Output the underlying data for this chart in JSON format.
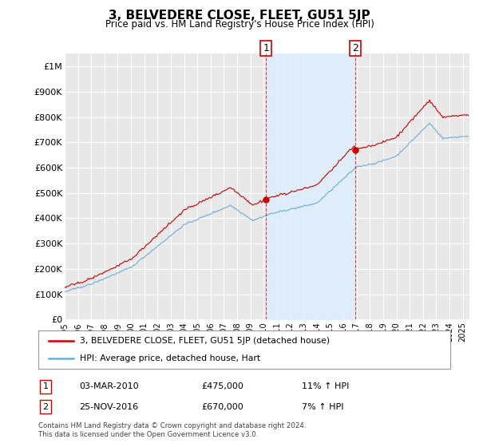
{
  "title": "3, BELVEDERE CLOSE, FLEET, GU51 5JP",
  "subtitle": "Price paid vs. HM Land Registry's House Price Index (HPI)",
  "hpi_color": "#6baed6",
  "price_color": "#cc0000",
  "shade_color": "#ddeeff",
  "background_color": "#ffffff",
  "plot_bg_color": "#e8e8e8",
  "grid_color": "#ffffff",
  "ylim": [
    0,
    1050000
  ],
  "yticks": [
    0,
    100000,
    200000,
    300000,
    400000,
    500000,
    600000,
    700000,
    800000,
    900000,
    1000000
  ],
  "ytick_labels": [
    "£0",
    "£100K",
    "£200K",
    "£300K",
    "£400K",
    "£500K",
    "£600K",
    "£700K",
    "£800K",
    "£900K",
    "£1M"
  ],
  "sale1_date": 2010.17,
  "sale1_price": 475000,
  "sale1_label": "1",
  "sale2_date": 2016.9,
  "sale2_price": 670000,
  "sale2_label": "2",
  "sale1_text": "03-MAR-2010",
  "sale1_amount": "£475,000",
  "sale1_hpi": "11% ↑ HPI",
  "sale2_text": "25-NOV-2016",
  "sale2_amount": "£670,000",
  "sale2_hpi": "7% ↑ HPI",
  "legend_line1": "3, BELVEDERE CLOSE, FLEET, GU51 5JP (detached house)",
  "legend_line2": "HPI: Average price, detached house, Hart",
  "footer": "Contains HM Land Registry data © Crown copyright and database right 2024.\nThis data is licensed under the Open Government Licence v3.0.",
  "xmin": 1995.0,
  "xmax": 2025.5
}
